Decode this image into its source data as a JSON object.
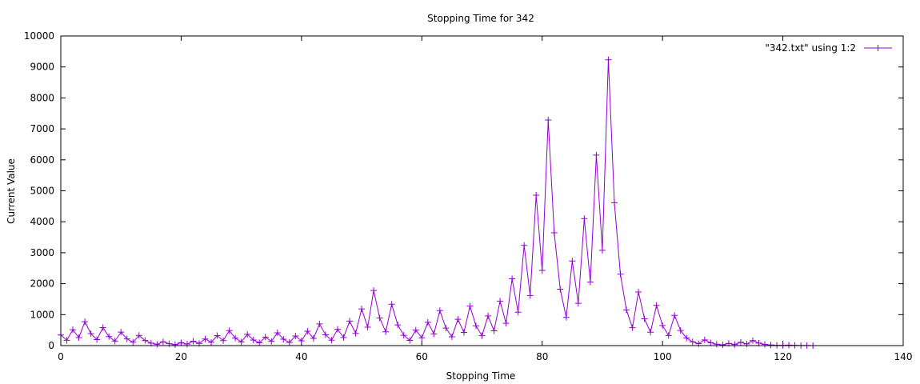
{
  "chart_data": {
    "type": "line",
    "title": "Stopping Time for 342",
    "xlabel": "Stopping Time",
    "ylabel": "Current Value",
    "xlim": [
      0,
      140
    ],
    "ylim": [
      0,
      10000
    ],
    "xticks": [
      0,
      20,
      40,
      60,
      80,
      100,
      120,
      140
    ],
    "yticks": [
      0,
      1000,
      2000,
      3000,
      4000,
      5000,
      6000,
      7000,
      8000,
      9000,
      10000
    ],
    "grid": false,
    "legend_position": "top-right",
    "series": [
      {
        "name": "\"342.txt\" using 1:2",
        "color": "#9400d3",
        "marker": "plus",
        "x": [
          0,
          1,
          2,
          3,
          4,
          5,
          6,
          7,
          8,
          9,
          10,
          11,
          12,
          13,
          14,
          15,
          16,
          17,
          18,
          19,
          20,
          21,
          22,
          23,
          24,
          25,
          26,
          27,
          28,
          29,
          30,
          31,
          32,
          33,
          34,
          35,
          36,
          37,
          38,
          39,
          40,
          41,
          42,
          43,
          44,
          45,
          46,
          47,
          48,
          49,
          50,
          51,
          52,
          53,
          54,
          55,
          56,
          57,
          58,
          59,
          60,
          61,
          62,
          63,
          64,
          65,
          66,
          67,
          68,
          69,
          70,
          71,
          72,
          73,
          74,
          75,
          76,
          77,
          78,
          79,
          80,
          81,
          82,
          83,
          84,
          85,
          86,
          87,
          88,
          89,
          90,
          91,
          92,
          93,
          94,
          95,
          96,
          97,
          98,
          99,
          100,
          101,
          102,
          103,
          104,
          105,
          106,
          107,
          108,
          109,
          110,
          111,
          112,
          113,
          114,
          115,
          116,
          117,
          118,
          119,
          120,
          121,
          122,
          123,
          124,
          125
        ],
        "values": [
          342,
          171,
          514,
          257,
          772,
          386,
          193,
          580,
          290,
          145,
          436,
          218,
          109,
          328,
          164,
          82,
          41,
          124,
          62,
          31,
          94,
          47,
          142,
          71,
          214,
          107,
          322,
          161,
          484,
          242,
          121,
          364,
          182,
          91,
          274,
          137,
          412,
          206,
          103,
          310,
          155,
          466,
          233,
          700,
          350,
          175,
          526,
          263,
          790,
          395,
          1186,
          593,
          1780,
          890,
          445,
          1336,
          668,
          334,
          167,
          502,
          251,
          754,
          377,
          1132,
          566,
          283,
          850,
          425,
          1276,
          638,
          319,
          958,
          479,
          1438,
          719,
          2158,
          1079,
          3238,
          1619,
          4858,
          2429,
          7288,
          3644,
          1822,
          911,
          2734,
          1367,
          4102,
          2051,
          6154,
          3077,
          9232,
          4616,
          2308,
          1154,
          577,
          1732,
          866,
          433,
          1300,
          650,
          325,
          976,
          488,
          244,
          122,
          61,
          184,
          92,
          46,
          23,
          70,
          35,
          106,
          53,
          160,
          80,
          40,
          20,
          10,
          5,
          16,
          8,
          4,
          2,
          1
        ]
      }
    ]
  }
}
